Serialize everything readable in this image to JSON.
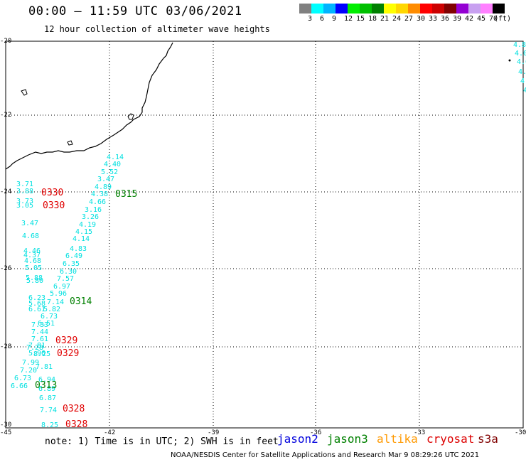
{
  "header": {
    "title": "00:00 – 11:59 UTC 03/06/2021",
    "subtitle": "12 hour collection of altimeter wave heights"
  },
  "color_scale": {
    "colors": [
      "#808080",
      "#00ffff",
      "#00b4ff",
      "#0000ff",
      "#00ee00",
      "#00c000",
      "#008000",
      "#ffff00",
      "#ffd700",
      "#ff8c00",
      "#ff0000",
      "#cc0000",
      "#800000",
      "#9400d3",
      "#c8a0f0",
      "#ff80ff",
      "#000000"
    ],
    "labels": [
      "3",
      "6",
      "9",
      "12",
      "15",
      "18",
      "21",
      "24",
      "27",
      "30",
      "33",
      "36",
      "39",
      "42",
      "45",
      "70",
      "(ft)"
    ]
  },
  "map": {
    "lat_labels": [
      "-20",
      "-22",
      "-24",
      "-26",
      "-28",
      "-30"
    ],
    "lon_labels": [
      "-45",
      "-42",
      "-39",
      "-36",
      "-33",
      "-30"
    ],
    "track_colors": {
      "cyan": "#00e0e0",
      "cryosat": "#e00000",
      "jason3": "#008000"
    },
    "cyan_labels": [
      "4.14",
      "4.40",
      "5.52",
      "3.47",
      "4.89",
      "4.38",
      "4.66",
      "3.16",
      "3.26",
      "4.19",
      "4.15",
      "4.14",
      "4.83",
      "6.49",
      "6.35",
      "6.30",
      "7.57",
      "6.97",
      "5.96",
      "7.14",
      "5.82",
      "6.73",
      "6.51",
      "7.33",
      "7.44",
      "7.61",
      "8.25",
      "7.81",
      "7.99",
      "7.20",
      "6.73",
      "6.66",
      "6.94",
      "6.89",
      "6.87",
      "7.74",
      "8.25",
      "3.71",
      "3.88",
      "3.73",
      "3.05",
      "3.47",
      "4.68",
      "4.46",
      "4.37",
      "4.68",
      "5.05",
      "5.88",
      "5.80",
      "6.23",
      "5.68",
      "6.61",
      "7.81",
      "7.28",
      "5.96",
      "4.8",
      "4.0",
      "4.6",
      "4.6",
      "4",
      "4"
    ],
    "pass_labels": [
      {
        "text": "0330",
        "color": "cryosat"
      },
      {
        "text": "0330",
        "color": "cryosat"
      },
      {
        "text": "0315",
        "color": "jason3"
      },
      {
        "text": "0314",
        "color": "jason3"
      },
      {
        "text": "0329",
        "color": "cryosat"
      },
      {
        "text": "0329",
        "color": "cryosat"
      },
      {
        "text": "0313",
        "color": "jason3"
      },
      {
        "text": "0328",
        "color": "cryosat"
      },
      {
        "text": "0328",
        "color": "cryosat"
      }
    ]
  },
  "footer": {
    "note": "note: 1) Time is in UTC; 2) SWH is in feet",
    "legend": [
      {
        "label": "jason2",
        "color": "#0000dd"
      },
      {
        "label": "jason3",
        "color": "#008000"
      },
      {
        "label": "altika",
        "color": "#ff9900"
      },
      {
        "label": "cryosat",
        "color": "#dd0000"
      },
      {
        "label": "s3a",
        "color": "#800000"
      }
    ],
    "credit": "NOAA/NESDIS Center for Satellite Applications and Research   Mar  9 08:29:26 UTC 2021"
  }
}
